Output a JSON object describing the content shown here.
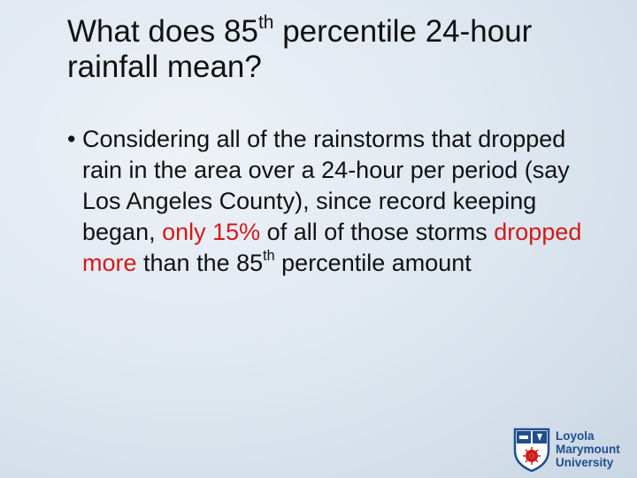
{
  "slide": {
    "title": {
      "part1": "What does 85",
      "sup": "th",
      "part2": " percentile 24-hour rainfall mean?"
    },
    "bullet": {
      "text_a": "Considering all of the rainstorms that dropped rain in the area over a 24-hour per period (say Los Angeles County), since record keeping began, ",
      "highlight1": "only 15%",
      "text_b": " of all of those storms ",
      "highlight2": "dropped more",
      "text_c": " than the 85",
      "sup": "th",
      "text_d": " percentile amount"
    },
    "logo": {
      "line1": "Loyola",
      "line2": "Marymount",
      "line3": "University"
    },
    "colors": {
      "highlight": "#d01a1a",
      "brand": "#1f4e8c"
    }
  }
}
